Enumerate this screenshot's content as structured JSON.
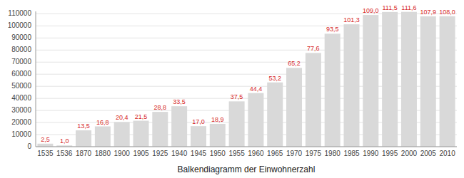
{
  "chart_data": {
    "type": "bar",
    "xlabel": "Balkendiagramm der Einwohnerzahl",
    "categories": [
      "1535",
      "1536",
      "1870",
      "1880",
      "1900",
      "1905",
      "1925",
      "1940",
      "1945",
      "1950",
      "1955",
      "1960",
      "1965",
      "1970",
      "1975",
      "1980",
      "1985",
      "1990",
      "1995",
      "2000",
      "2005",
      "2010"
    ],
    "values": [
      2500,
      1000,
      13500,
      16800,
      20400,
      21500,
      28800,
      33500,
      17000,
      18900,
      37500,
      44400,
      53200,
      65200,
      77600,
      93500,
      101300,
      109000,
      111500,
      111600,
      107900,
      108000
    ],
    "value_labels": [
      "2,5",
      "1,0",
      "13,5",
      "16,8",
      "20,4",
      "21,5",
      "28,8",
      "33,5",
      "17,0",
      "18,9",
      "37,5",
      "44,4",
      "53,2",
      "65,2",
      "77,6",
      "93,5",
      "101,3",
      "109,0",
      "111,5",
      "111,6",
      "107,9",
      "108,0"
    ],
    "data_labels": true,
    "color": "#d9d9d9",
    "ylim": [
      0,
      112000
    ],
    "yticks": [
      0,
      10000,
      20000,
      30000,
      40000,
      50000,
      60000,
      70000,
      80000,
      90000,
      100000,
      110000
    ],
    "grid": true
  }
}
